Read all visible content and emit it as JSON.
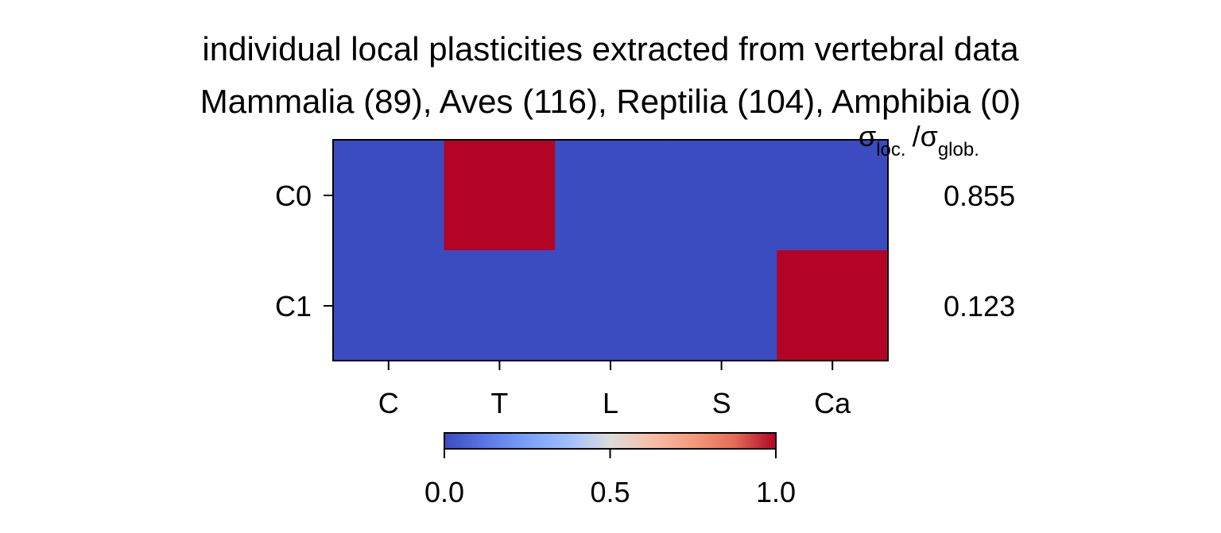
{
  "chart_data": {
    "type": "heatmap",
    "title": "individual local plasticities extracted from vertebral data",
    "subtitle": "Mammalia (89), Aves (116), Reptilia (104), Amphibia (0)",
    "rows": [
      "C0",
      "C1"
    ],
    "columns": [
      "C",
      "T",
      "L",
      "S",
      "Ca"
    ],
    "values": [
      [
        0,
        1,
        0,
        0,
        0
      ],
      [
        0,
        0,
        0,
        0,
        1
      ]
    ],
    "side_label": {
      "sigma": "σ",
      "loc_sub": "loc.",
      "slash": "/",
      "glob_sub": "glob."
    },
    "side_values": [
      "0.855",
      "0.123"
    ],
    "colorbar": {
      "colormap": "coolwarm",
      "range": [
        0,
        1
      ],
      "ticks": [
        "0.0",
        "0.5",
        "1.0"
      ]
    },
    "colors": {
      "low": "#3b4cc0",
      "mid": "#dddddd",
      "high": "#b40426"
    }
  }
}
